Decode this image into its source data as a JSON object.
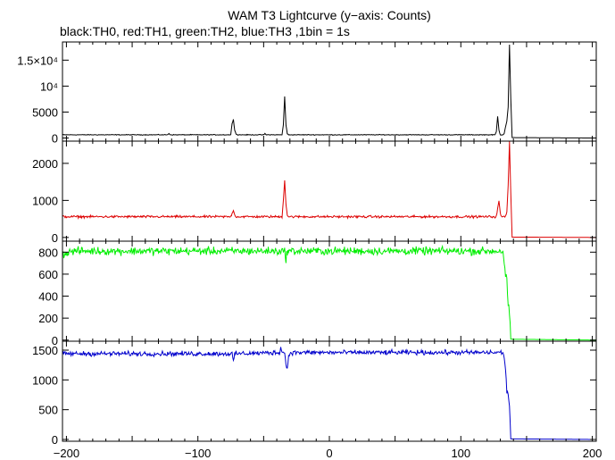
{
  "chart_data": {
    "type": "line",
    "title": "WAM T3 Lightcurve (y−axis: Counts)",
    "subtitle": "black:TH0, red:TH1, green:TH2, blue:TH3 ,1bin = 1s",
    "xlim": [
      -203,
      203
    ],
    "x_ticks": [
      -200,
      -100,
      0,
      100,
      200
    ],
    "x_tick_labels": [
      "−200",
      "−100",
      "0",
      "100",
      "200"
    ],
    "grid": false,
    "panels": [
      {
        "series_name": "TH0",
        "color": "#000000",
        "ylim": [
          -600,
          18500
        ],
        "y_ticks": [
          0,
          5000,
          10000,
          15000
        ],
        "y_tick_labels": [
          "0",
          "5000",
          "10⁴",
          "1.5×10⁴"
        ],
        "baseline": 620,
        "noise": 60,
        "after_value": 0,
        "points": [
          [
            -203,
            620
          ],
          [
            -123,
            620
          ],
          [
            -122,
            900
          ],
          [
            -121,
            620
          ],
          [
            -75,
            620
          ],
          [
            -74,
            2800
          ],
          [
            -73,
            3600
          ],
          [
            -72,
            1500
          ],
          [
            -71,
            800
          ],
          [
            -70,
            620
          ],
          [
            -50,
            620
          ],
          [
            -49,
            850
          ],
          [
            -48,
            620
          ],
          [
            -36,
            620
          ],
          [
            -35,
            2500
          ],
          [
            -34,
            8000
          ],
          [
            -33,
            2500
          ],
          [
            -32,
            800
          ],
          [
            -31,
            620
          ],
          [
            126,
            620
          ],
          [
            127,
            1200
          ],
          [
            128,
            4200
          ],
          [
            129,
            1500
          ],
          [
            130,
            620
          ],
          [
            132,
            620
          ],
          [
            133,
            900
          ],
          [
            134,
            2200
          ],
          [
            135,
            3200
          ],
          [
            136,
            6000
          ],
          [
            137,
            18000
          ],
          [
            138,
            7500
          ],
          [
            139,
            80
          ],
          [
            203,
            0
          ]
        ]
      },
      {
        "series_name": "TH1",
        "color": "#dd0000",
        "ylim": [
          -100,
          2600
        ],
        "y_ticks": [
          0,
          1000,
          2000
        ],
        "y_tick_labels": [
          "0",
          "1000",
          "2000"
        ],
        "baseline": 560,
        "noise": 28,
        "after_value": 0,
        "points": [
          [
            -203,
            560
          ],
          [
            -75,
            560
          ],
          [
            -74,
            650
          ],
          [
            -73,
            750
          ],
          [
            -72,
            600
          ],
          [
            -71,
            560
          ],
          [
            -36,
            560
          ],
          [
            -35,
            1000
          ],
          [
            -34,
            1550
          ],
          [
            -33,
            900
          ],
          [
            -32,
            600
          ],
          [
            -31,
            560
          ],
          [
            127,
            560
          ],
          [
            128,
            800
          ],
          [
            129,
            980
          ],
          [
            130,
            640
          ],
          [
            131,
            560
          ],
          [
            134,
            560
          ],
          [
            135,
            700
          ],
          [
            136,
            1400
          ],
          [
            137,
            2600
          ],
          [
            138,
            1200
          ],
          [
            139,
            10
          ],
          [
            203,
            0
          ]
        ]
      },
      {
        "series_name": "TH2",
        "color": "#00ee00",
        "ylim": [
          -10,
          900
        ],
        "y_ticks": [
          0,
          200,
          400,
          600,
          800
        ],
        "y_tick_labels": [
          "0",
          "200",
          "400",
          "600",
          "800"
        ],
        "baseline": 810,
        "noise": 32,
        "after_value": 0,
        "points": [
          [
            -203,
            780
          ],
          [
            -195,
            810
          ],
          [
            -34,
            810
          ],
          [
            -33,
            745
          ],
          [
            -32,
            810
          ],
          [
            132,
            810
          ],
          [
            133,
            700
          ],
          [
            134,
            580
          ],
          [
            135,
            550
          ],
          [
            136,
            320
          ],
          [
            137,
            240
          ],
          [
            138,
            8
          ],
          [
            203,
            0
          ]
        ]
      },
      {
        "series_name": "TH3",
        "color": "#0000cc",
        "ylim": [
          -30,
          1650
        ],
        "y_ticks": [
          0,
          500,
          1000,
          1500
        ],
        "y_tick_labels": [
          "0",
          "500",
          "1000",
          "1500"
        ],
        "baseline": 1460,
        "noise": 35,
        "after_value": 0,
        "points": [
          [
            -203,
            1440
          ],
          [
            -74,
            1440
          ],
          [
            -73,
            1300
          ],
          [
            -72,
            1440
          ],
          [
            -38,
            1460
          ],
          [
            -37,
            1550
          ],
          [
            -36,
            1460
          ],
          [
            -34,
            1460
          ],
          [
            -33,
            1250
          ],
          [
            -32,
            1200
          ],
          [
            -31,
            1380
          ],
          [
            -30,
            1460
          ],
          [
            132,
            1460
          ],
          [
            133,
            1350
          ],
          [
            134,
            1200
          ],
          [
            135,
            800
          ],
          [
            136,
            750
          ],
          [
            137,
            580
          ],
          [
            138,
            10
          ],
          [
            203,
            0
          ]
        ]
      }
    ]
  }
}
